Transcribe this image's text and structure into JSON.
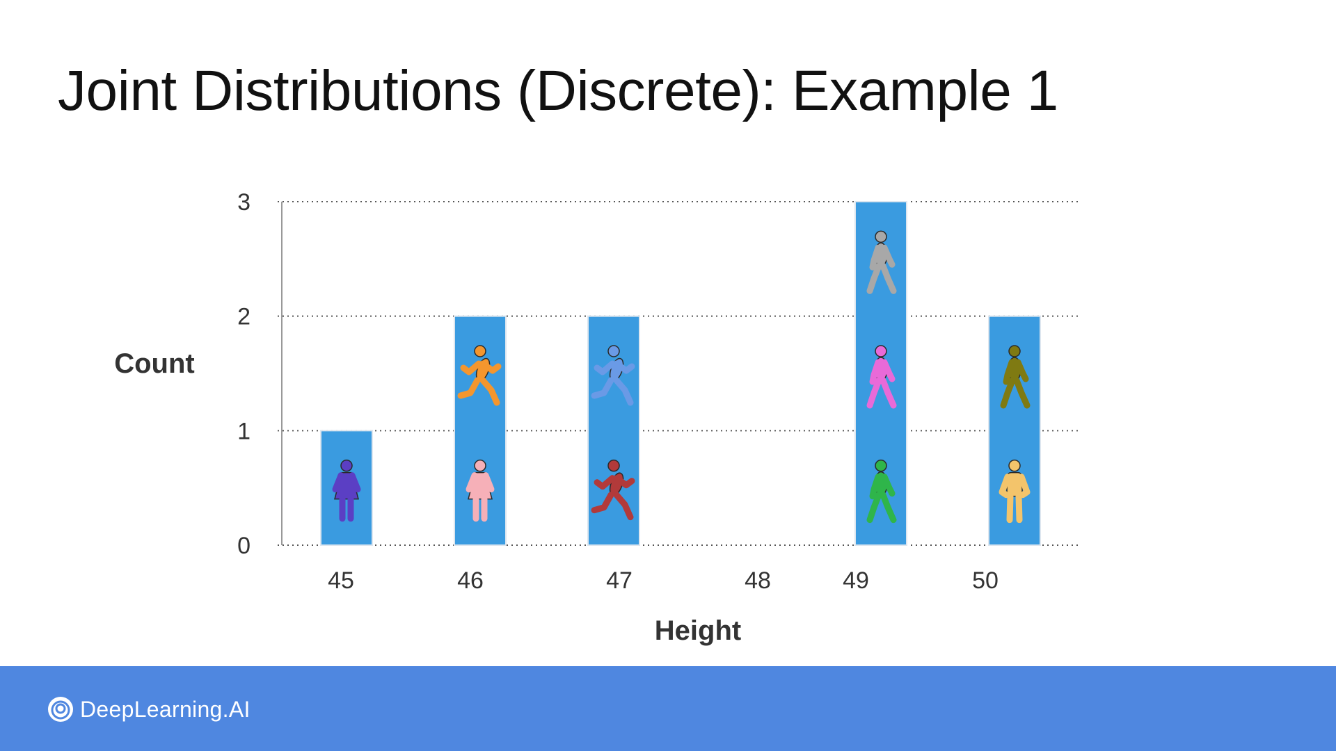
{
  "slide": {
    "title": "Joint Distributions (Discrete): Example 1"
  },
  "chart_data": {
    "type": "bar",
    "xlabel": "Height",
    "ylabel": "Count",
    "categories": [
      "45",
      "46",
      "47",
      "48",
      "49",
      "50"
    ],
    "values": [
      1,
      2,
      2,
      0,
      3,
      2
    ],
    "ylim": [
      0,
      3
    ],
    "yticks": [
      0,
      1,
      2,
      3
    ],
    "grid": "horizontal dotted",
    "bar_color": "#3a9be0",
    "figures": [
      [
        {
          "icon": "standing-woman-icon",
          "color": "#5b3fc4"
        }
      ],
      [
        {
          "icon": "standing-girl-icon",
          "color": "#f6b0b8"
        },
        {
          "icon": "running-person-icon",
          "color": "#f4962e"
        }
      ],
      [
        {
          "icon": "running-person-icon",
          "color": "#b23a3a"
        },
        {
          "icon": "running-person-icon",
          "color": "#6a9ae6"
        }
      ],
      [],
      [
        {
          "icon": "walking-woman-icon",
          "color": "#2fb54a"
        },
        {
          "icon": "walking-woman-icon",
          "color": "#e96ad8"
        },
        {
          "icon": "walking-person-icon",
          "color": "#a8a8a8"
        }
      ],
      [
        {
          "icon": "standing-man-icon",
          "color": "#f3c46b"
        },
        {
          "icon": "walking-person-icon",
          "color": "#7f7a12"
        }
      ]
    ]
  },
  "footer": {
    "brand": "DeepLearning.AI",
    "color": "#4f87e0"
  }
}
